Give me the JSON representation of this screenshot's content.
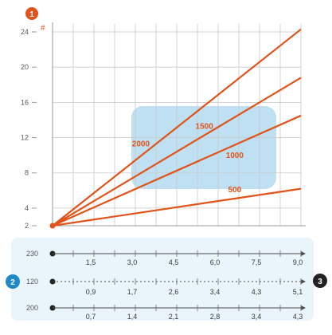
{
  "chart_data": {
    "type": "line",
    "top_marker": "1",
    "left_marker": "2",
    "right_marker": "3",
    "y_axis_label": "#",
    "y_ticks": [
      "2",
      "4",
      "8",
      "12",
      "16",
      "20",
      "24"
    ],
    "ylim": [
      2,
      24
    ],
    "xlim": [
      0,
      9
    ],
    "grid": true,
    "series": [
      {
        "name": "2000",
        "values": [
          [
            0,
            2
          ],
          [
            9,
            24.3
          ]
        ]
      },
      {
        "name": "1500",
        "values": [
          [
            0,
            2
          ],
          [
            9,
            18.8
          ]
        ]
      },
      {
        "name": "1000",
        "values": [
          [
            0,
            2
          ],
          [
            9,
            14.5
          ]
        ]
      },
      {
        "name": "500",
        "values": [
          [
            0,
            2
          ],
          [
            9,
            6.2
          ]
        ]
      }
    ],
    "secondary_axes": [
      {
        "left_label": "230",
        "ticks": [
          "1,5",
          "3,0",
          "4,5",
          "6,0",
          "7,5",
          "9,0"
        ]
      },
      {
        "left_label": "120",
        "ticks": [
          "0,9",
          "1,7",
          "2,6",
          "3,4",
          "4,3",
          "5,1"
        ]
      },
      {
        "left_label": "200",
        "ticks": [
          "0,7",
          "1,4",
          "2,1",
          "2,8",
          "3,4",
          "4,3"
        ]
      }
    ],
    "colors": {
      "line": "#e0531a",
      "highlight": "#a9d6ee",
      "marker": "#e0531a",
      "axis_marker": "#1e88c9",
      "dark_marker": "#222222"
    }
  }
}
